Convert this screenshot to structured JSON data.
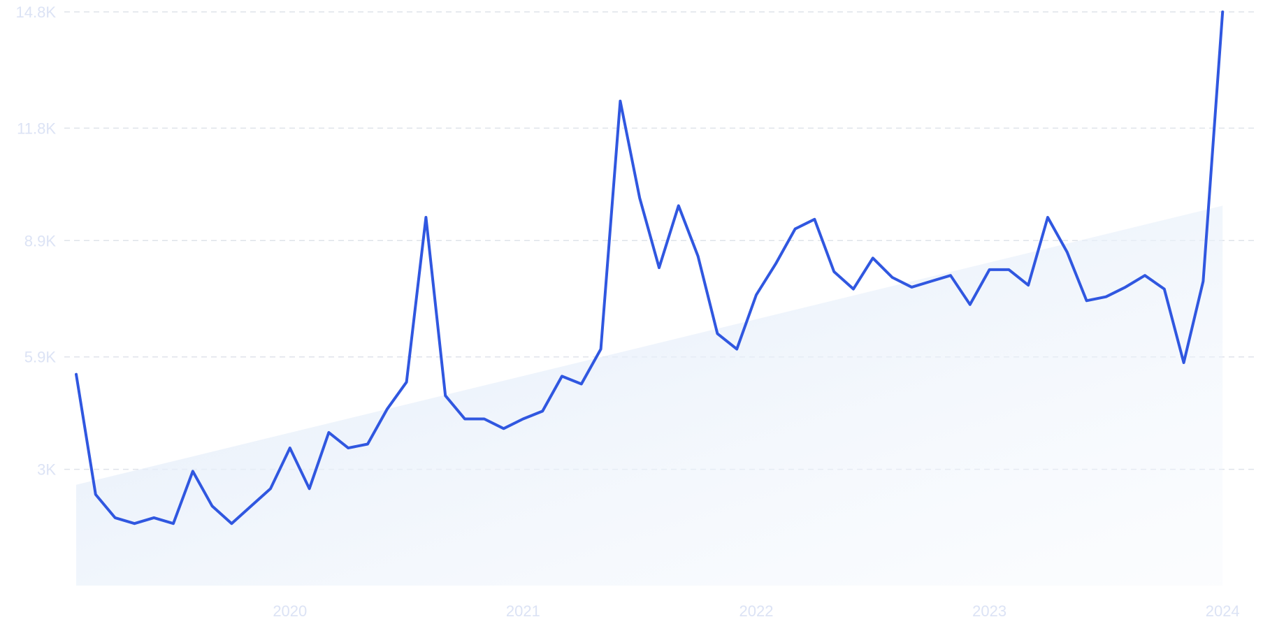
{
  "chart_data": {
    "type": "line",
    "title": "",
    "xlabel": "",
    "ylabel": "",
    "y_ticks": [
      {
        "value": 3000,
        "label": "3K"
      },
      {
        "value": 5900,
        "label": "5.9K"
      },
      {
        "value": 8900,
        "label": "8.9K"
      },
      {
        "value": 11800,
        "label": "11.8K"
      },
      {
        "value": 14800,
        "label": "14.8K"
      }
    ],
    "x_ticks": [
      {
        "value": "2020-01",
        "label": "2020"
      },
      {
        "value": "2021-01",
        "label": "2021"
      },
      {
        "value": "2022-01",
        "label": "2022"
      },
      {
        "value": "2023-01",
        "label": "2023"
      },
      {
        "value": "2024-01",
        "label": "2024"
      }
    ],
    "ylim": [
      0,
      14800
    ],
    "xlim": [
      "2019-02",
      "2024-02"
    ],
    "grid": true,
    "legend": "none",
    "line_color": "#3057e0",
    "trend_fill_color": "#dfeaf8",
    "tick_label_color": "#dce3f5",
    "trend": {
      "start": {
        "x": "2019-02",
        "y": 2600
      },
      "end": {
        "x": "2024-01",
        "y": 9800
      }
    },
    "series": [
      {
        "x": [
          "2019-02",
          "2019-03",
          "2019-04",
          "2019-05",
          "2019-06",
          "2019-07",
          "2019-08",
          "2019-09",
          "2019-10",
          "2019-11",
          "2019-12",
          "2020-01",
          "2020-02",
          "2020-03",
          "2020-04",
          "2020-05",
          "2020-06",
          "2020-07",
          "2020-08",
          "2020-09",
          "2020-10",
          "2020-11",
          "2020-12",
          "2021-01",
          "2021-02",
          "2021-03",
          "2021-04",
          "2021-05",
          "2021-06",
          "2021-07",
          "2021-08",
          "2021-09",
          "2021-10",
          "2021-11",
          "2021-12",
          "2022-01",
          "2022-02",
          "2022-03",
          "2022-04",
          "2022-05",
          "2022-06",
          "2022-07",
          "2022-08",
          "2022-09",
          "2022-10",
          "2022-11",
          "2022-12",
          "2023-01",
          "2023-02",
          "2023-03",
          "2023-04",
          "2023-05",
          "2023-06",
          "2023-07",
          "2023-08",
          "2023-09",
          "2023-10",
          "2023-11",
          "2023-12",
          "2024-01"
        ],
        "values": [
          5450,
          2350,
          1750,
          1600,
          1750,
          1600,
          2950,
          2050,
          1600,
          2050,
          2500,
          3550,
          2500,
          3950,
          3550,
          3650,
          4550,
          5250,
          9500,
          4900,
          4300,
          4300,
          4050,
          4300,
          4500,
          5400,
          5200,
          6100,
          12500,
          10000,
          8200,
          9800,
          8500,
          6500,
          6100,
          7500,
          8300,
          9200,
          9450,
          8100,
          7650,
          8450,
          7950,
          7700,
          7850,
          8000,
          7250,
          8150,
          8150,
          7750,
          9500,
          8600,
          7350,
          7450,
          7700,
          8000,
          7650,
          5750,
          7850,
          14800
        ]
      }
    ]
  }
}
